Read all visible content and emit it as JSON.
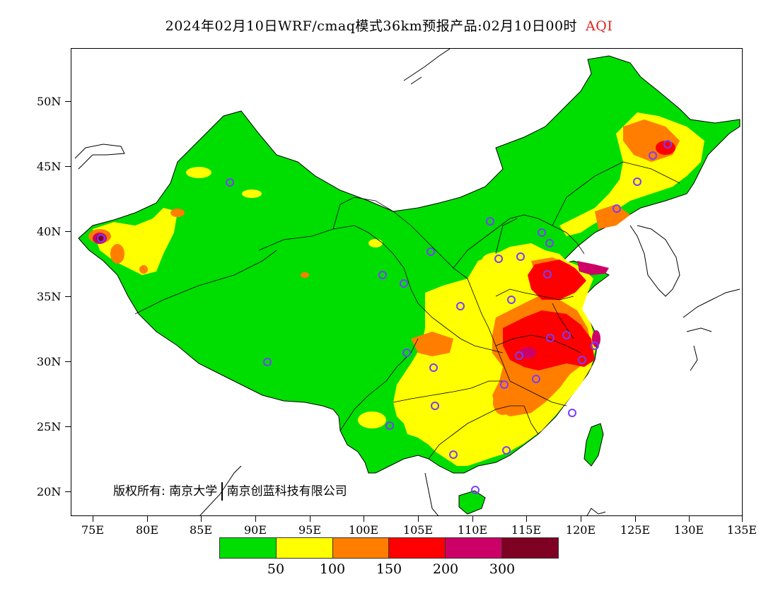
{
  "title": {
    "text": "2024年02月10日WRF/cmaq模式36km预报产品:02月10日00时",
    "variable": "AQI",
    "variable_color": "#e02020"
  },
  "axes": {
    "y_labels": [
      "50N",
      "45N",
      "40N",
      "35N",
      "30N",
      "25N",
      "20N"
    ],
    "x_labels": [
      "75E",
      "80E",
      "85E",
      "90E",
      "95E",
      "100E",
      "105E",
      "110E",
      "115E",
      "120E",
      "125E",
      "130E",
      "135E"
    ],
    "lon_range": [
      73,
      135
    ],
    "lat_range": [
      18,
      54
    ]
  },
  "copyright": {
    "prefix": "版权所有:",
    "org1": "南京大学",
    "org2": "南京创蓝科技有限公司"
  },
  "legend": {
    "colors": [
      "#00dd00",
      "#ffff00",
      "#ff7e00",
      "#ff0000",
      "#cc0066",
      "#7e0023"
    ],
    "labels": [
      "50",
      "100",
      "150",
      "200",
      "300"
    ]
  },
  "colors": {
    "good": "#00dd00",
    "moderate": "#ffff00",
    "usg": "#ff7e00",
    "unhealthy": "#ff0000",
    "very_unhealthy": "#cc0066",
    "hazardous": "#7e0023",
    "deep_green": "#22c722",
    "station_marker": "#7a3cff",
    "boundary": "#000000"
  }
}
